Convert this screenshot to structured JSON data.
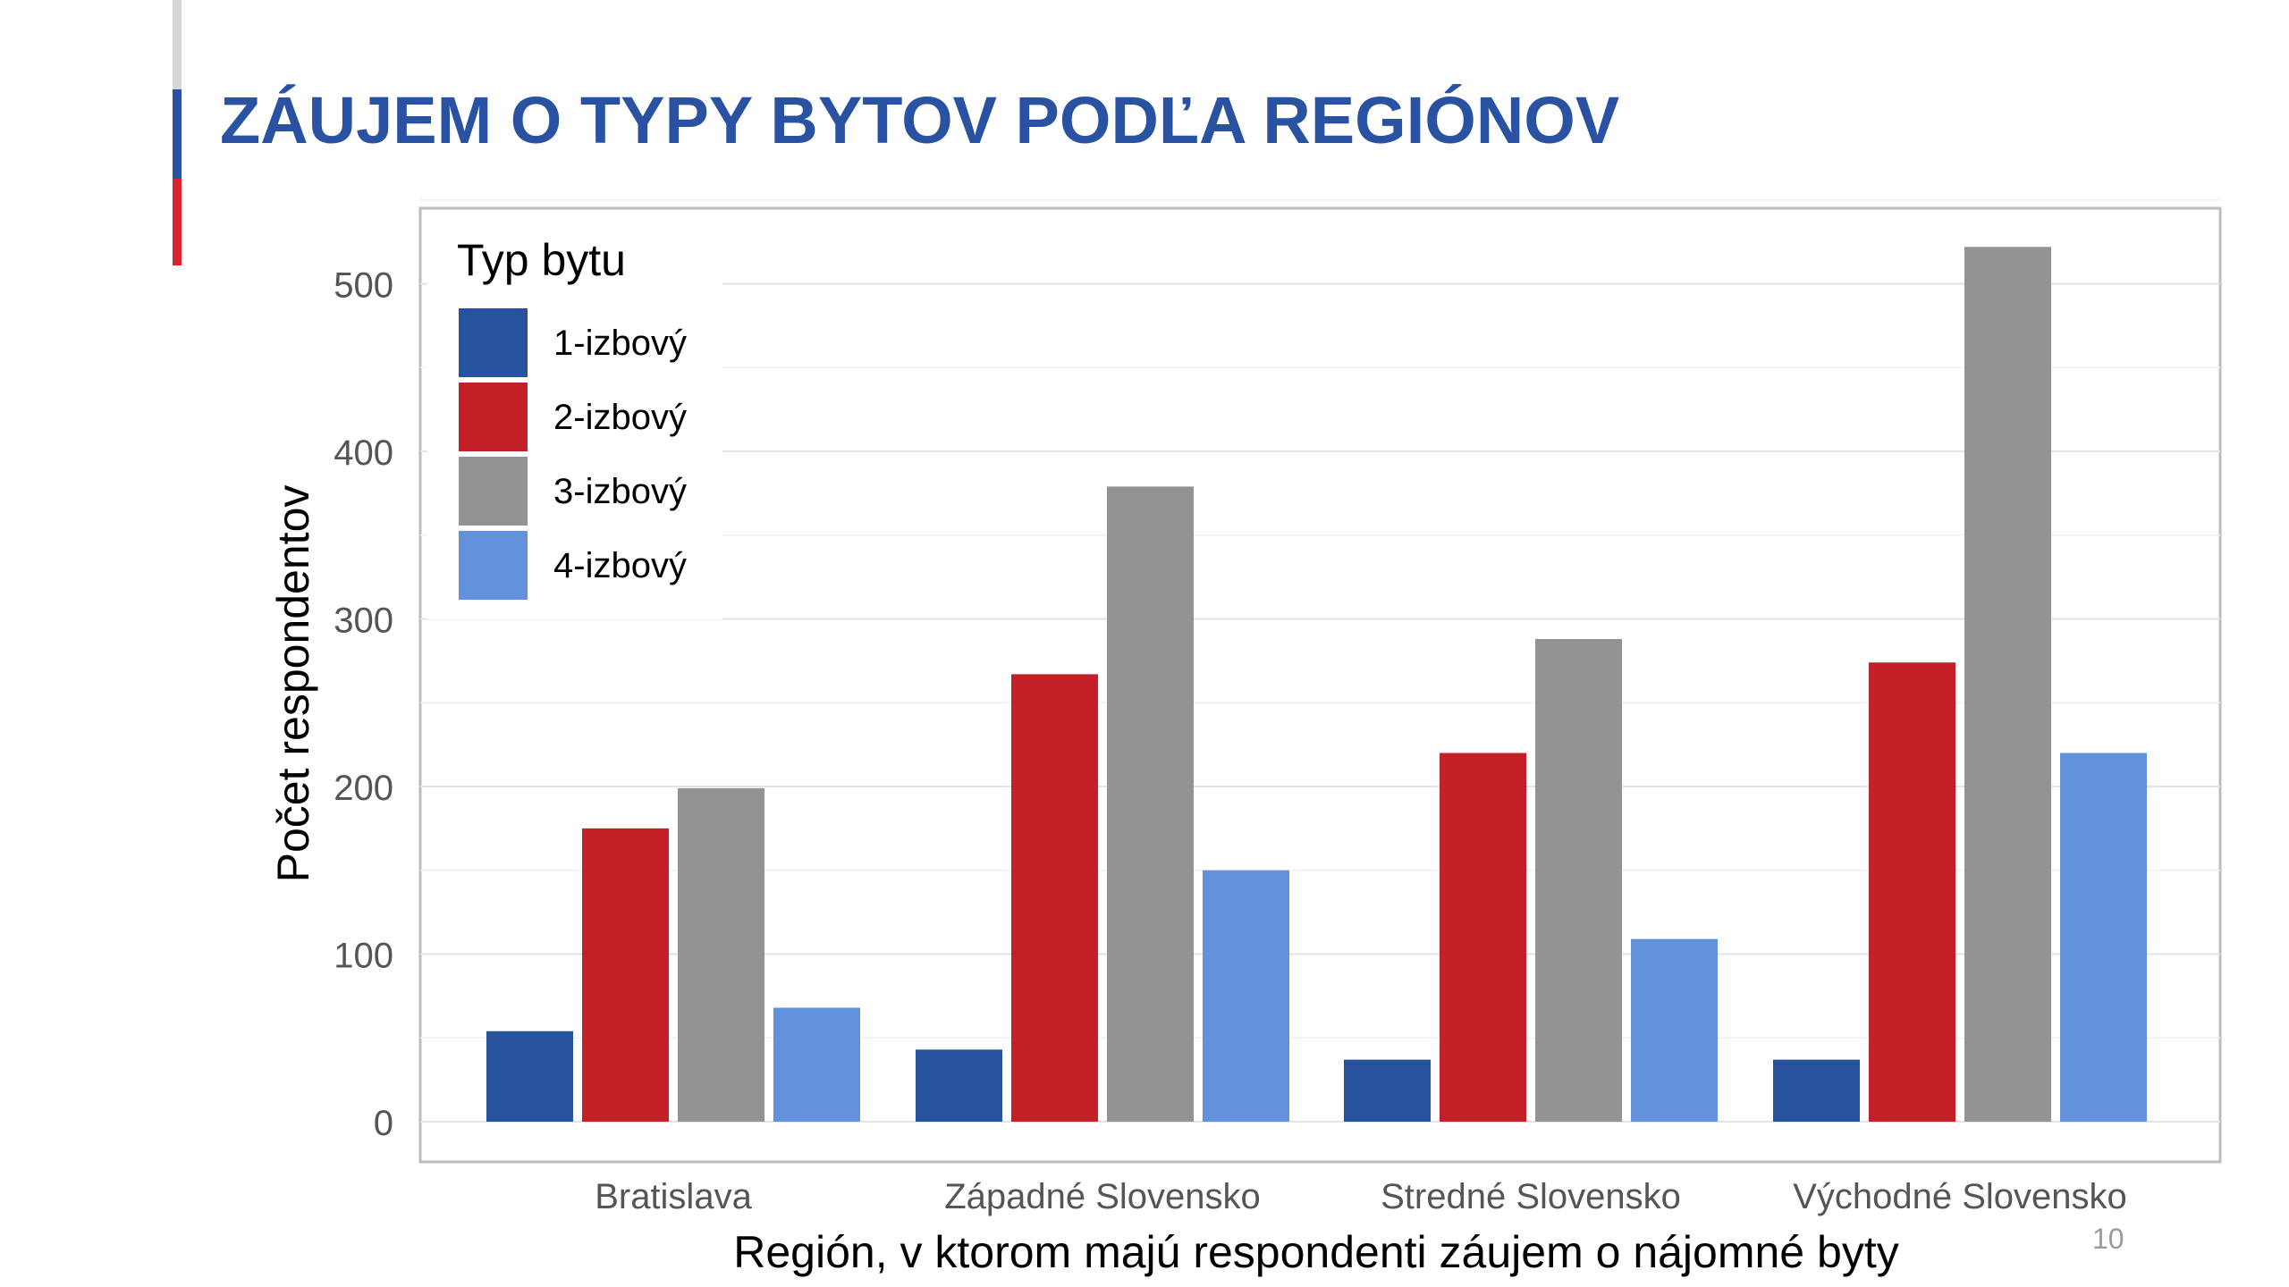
{
  "slide": {
    "title": "ZÁUJEM O TYPY BYTOV PODĽA REGIÓNOV",
    "page_number": "10",
    "accent_colors": [
      "#d6d6d6",
      "#2a52a3",
      "#d9252f"
    ],
    "title_color": "#2a52a3"
  },
  "chart_data": {
    "type": "bar",
    "title": "",
    "xlabel": "Región, v ktorom majú respondenti záujem o nájomné byty",
    "ylabel": "Počet respondentov",
    "ylim": [
      0,
      550
    ],
    "yticks": [
      0,
      100,
      200,
      300,
      400,
      500
    ],
    "grid": true,
    "legend_title": "Typ bytu",
    "legend_position": "top-left",
    "categories": [
      "Bratislava",
      "Západné Slovensko",
      "Stredné Slovensko",
      "Východné Slovensko"
    ],
    "series": [
      {
        "name": "1-izbový",
        "color": "#26529e",
        "values": [
          54,
          43,
          37,
          37
        ]
      },
      {
        "name": "2-izbový",
        "color": "#c42027",
        "values": [
          175,
          267,
          220,
          274
        ]
      },
      {
        "name": "3-izbový",
        "color": "#939393",
        "values": [
          199,
          379,
          288,
          522
        ]
      },
      {
        "name": "4-izbový",
        "color": "#6292db",
        "values": [
          68,
          150,
          109,
          220
        ]
      }
    ]
  }
}
